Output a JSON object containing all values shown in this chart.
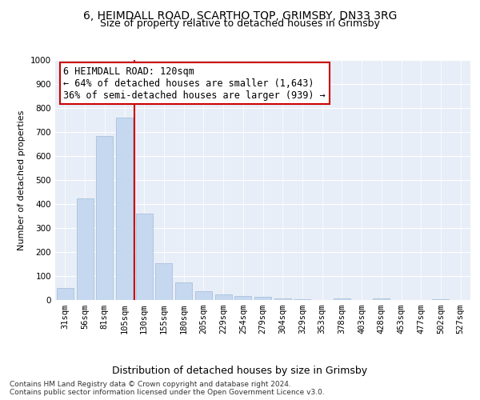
{
  "title1": "6, HEIMDALL ROAD, SCARTHO TOP, GRIMSBY, DN33 3RG",
  "title2": "Size of property relative to detached houses in Grimsby",
  "xlabel": "Distribution of detached houses by size in Grimsby",
  "ylabel": "Number of detached properties",
  "categories": [
    "31sqm",
    "56sqm",
    "81sqm",
    "105sqm",
    "130sqm",
    "155sqm",
    "180sqm",
    "205sqm",
    "229sqm",
    "254sqm",
    "279sqm",
    "304sqm",
    "329sqm",
    "353sqm",
    "378sqm",
    "403sqm",
    "428sqm",
    "453sqm",
    "477sqm",
    "502sqm",
    "527sqm"
  ],
  "values": [
    50,
    425,
    685,
    760,
    360,
    155,
    75,
    38,
    25,
    18,
    12,
    7,
    5,
    0,
    8,
    0,
    7,
    0,
    0,
    5,
    0
  ],
  "bar_color": "#c5d8f0",
  "bar_edge_color": "#a0bbd8",
  "vline_color": "#cc0000",
  "annotation_text": "6 HEIMDALL ROAD: 120sqm\n← 64% of detached houses are smaller (1,643)\n36% of semi-detached houses are larger (939) →",
  "annotation_box_color": "#ffffff",
  "annotation_box_edge": "#cc0000",
  "background_color": "#e8eef7",
  "ylim": [
    0,
    1000
  ],
  "yticks": [
    0,
    100,
    200,
    300,
    400,
    500,
    600,
    700,
    800,
    900,
    1000
  ],
  "footer": "Contains HM Land Registry data © Crown copyright and database right 2024.\nContains public sector information licensed under the Open Government Licence v3.0.",
  "title1_fontsize": 10,
  "title2_fontsize": 9,
  "xlabel_fontsize": 9,
  "ylabel_fontsize": 8,
  "tick_fontsize": 7.5,
  "annotation_fontsize": 8.5,
  "footer_fontsize": 6.5
}
